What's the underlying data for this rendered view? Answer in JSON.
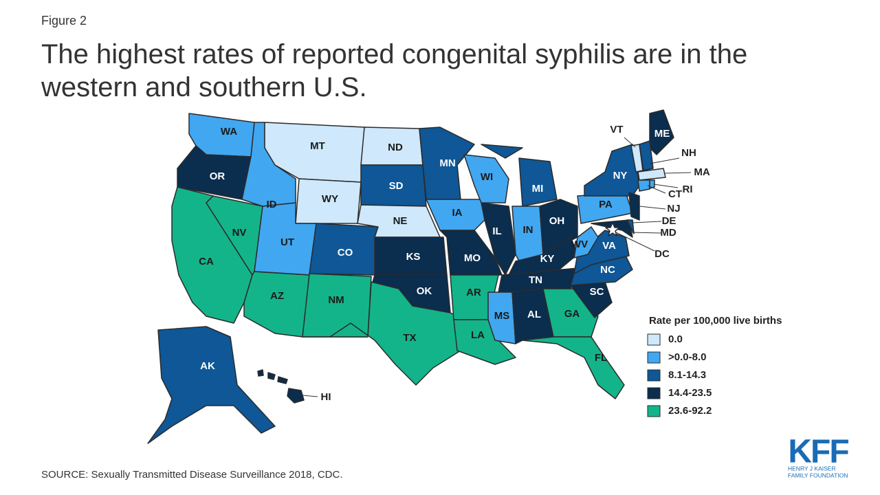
{
  "header": {
    "figure": "Figure 2",
    "title": "The highest rates of reported congenital syphilis are in the western and southern U.S."
  },
  "legend": {
    "title": "Rate per 100,000 live births",
    "items": [
      {
        "label": "0.0",
        "color": "#cfe8fb"
      },
      {
        "label": ">0.0-8.0",
        "color": "#41a7f1"
      },
      {
        "label": "8.1-14.3",
        "color": "#0f5796"
      },
      {
        "label": "14.4-23.5",
        "color": "#0b2d4e"
      },
      {
        "label": "23.6-92.2",
        "color": "#14b48a"
      }
    ]
  },
  "states": [
    {
      "label": "WA",
      "color": "#41a7f1"
    },
    {
      "label": "OR",
      "color": "#0b2d4e"
    },
    {
      "label": "CA",
      "color": "#14b48a"
    },
    {
      "label": "NV",
      "color": "#14b48a"
    },
    {
      "label": "ID",
      "color": "#41a7f1"
    },
    {
      "label": "MT",
      "color": "#cfe8fb"
    },
    {
      "label": "WY",
      "color": "#cfe8fb"
    },
    {
      "label": "UT",
      "color": "#41a7f1"
    },
    {
      "label": "AZ",
      "color": "#14b48a"
    },
    {
      "label": "CO",
      "color": "#0f5796"
    },
    {
      "label": "NM",
      "color": "#14b48a"
    },
    {
      "label": "ND",
      "color": "#cfe8fb"
    },
    {
      "label": "SD",
      "color": "#0f5796"
    },
    {
      "label": "NE",
      "color": "#cfe8fb"
    },
    {
      "label": "KS",
      "color": "#0b2d4e"
    },
    {
      "label": "OK",
      "color": "#0b2d4e"
    },
    {
      "label": "TX",
      "color": "#14b48a"
    },
    {
      "label": "MN",
      "color": "#0f5796"
    },
    {
      "label": "IA",
      "color": "#41a7f1"
    },
    {
      "label": "MO",
      "color": "#0b2d4e"
    },
    {
      "label": "AR",
      "color": "#14b48a"
    },
    {
      "label": "LA",
      "color": "#14b48a"
    },
    {
      "label": "WI",
      "color": "#41a7f1"
    },
    {
      "label": "IL",
      "color": "#0b2d4e"
    },
    {
      "label": "MI",
      "color": "#0f5796"
    },
    {
      "label": "IN",
      "color": "#41a7f1"
    },
    {
      "label": "OH",
      "color": "#0b2d4e"
    },
    {
      "label": "KY",
      "color": "#0b2d4e"
    },
    {
      "label": "TN",
      "color": "#0b2d4e"
    },
    {
      "label": "MS",
      "color": "#41a7f1"
    },
    {
      "label": "AL",
      "color": "#0b2d4e"
    },
    {
      "label": "GA",
      "color": "#14b48a"
    },
    {
      "label": "FL",
      "color": "#14b48a"
    },
    {
      "label": "SC",
      "color": "#0b2d4e"
    },
    {
      "label": "NC",
      "color": "#0f5796"
    },
    {
      "label": "VA",
      "color": "#0f5796"
    },
    {
      "label": "WV",
      "color": "#41a7f1"
    },
    {
      "label": "PA",
      "color": "#41a7f1"
    },
    {
      "label": "NY",
      "color": "#0f5796"
    },
    {
      "label": "MD",
      "color": "#0b2d4e"
    },
    {
      "label": "DE",
      "color": "#0f5796"
    },
    {
      "label": "NJ",
      "color": "#0b2d4e"
    },
    {
      "label": "ME",
      "color": "#0b2d4e"
    },
    {
      "label": "VT",
      "color": "#cfe8fb"
    },
    {
      "label": "NH",
      "color": "#0f5796"
    },
    {
      "label": "MA",
      "color": "#cfe8fb"
    },
    {
      "label": "CT",
      "color": "#41a7f1"
    },
    {
      "label": "RI",
      "color": "#41a7f1"
    },
    {
      "label": "AK",
      "color": "#0f5796"
    },
    {
      "label": "HI",
      "color": "#0b2d4e"
    },
    {
      "label": "DC",
      "color": "#ffffff"
    }
  ],
  "source": "SOURCE: Sexually Transmitted Disease Surveillance 2018, CDC.",
  "logo": {
    "name": "KFF",
    "lines": [
      "HENRY J KAISER",
      "FAMILY FOUNDATION"
    ]
  }
}
